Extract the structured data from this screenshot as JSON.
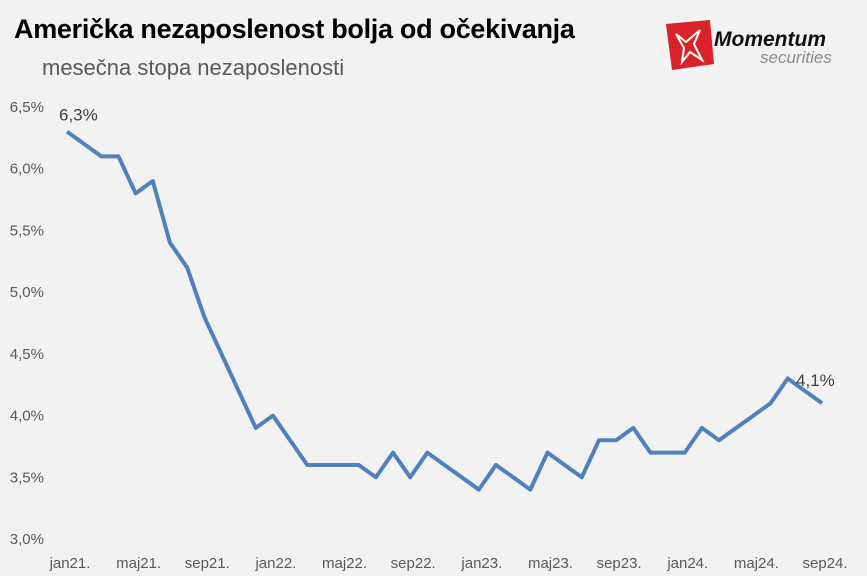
{
  "title": "Američka nezaposlenost bolja od očekivanja",
  "subtitle": "mesečna stopa nezaposlenosti",
  "logo": {
    "text": "Momentum",
    "subtext": "securities",
    "color": "#d8232a"
  },
  "chart_data": {
    "type": "line",
    "title": "Američka nezaposlenost bolja od očekivanja",
    "subtitle": "mesečna stopa nezaposlenosti",
    "xlabel": "",
    "ylabel": "",
    "ylim": [
      3.0,
      6.5
    ],
    "yticks": [
      "3,0%",
      "3,5%",
      "4,0%",
      "4,5%",
      "5,0%",
      "5,5%",
      "6,0%",
      "6,5%"
    ],
    "xtick_labels": [
      "jan21.",
      "maj21.",
      "sep21.",
      "jan22.",
      "maj22.",
      "sep22.",
      "jan23.",
      "maj23.",
      "sep23.",
      "jan24.",
      "maj24.",
      "sep24."
    ],
    "grid": false,
    "line_color": "#4f81bd",
    "values": [
      6.3,
      6.2,
      6.1,
      6.1,
      5.8,
      5.9,
      5.4,
      5.2,
      4.8,
      4.5,
      4.2,
      3.9,
      4.0,
      3.8,
      3.6,
      3.6,
      3.6,
      3.6,
      3.5,
      3.7,
      3.5,
      3.7,
      3.6,
      3.5,
      3.4,
      3.6,
      3.5,
      3.4,
      3.7,
      3.6,
      3.5,
      3.8,
      3.8,
      3.9,
      3.7,
      3.7,
      3.7,
      3.9,
      3.8,
      3.9,
      4.0,
      4.1,
      4.3,
      4.2,
      4.1
    ],
    "annotations": [
      {
        "index": 0,
        "text": "6,3%"
      },
      {
        "index": 44,
        "text": "4,1%"
      }
    ]
  }
}
